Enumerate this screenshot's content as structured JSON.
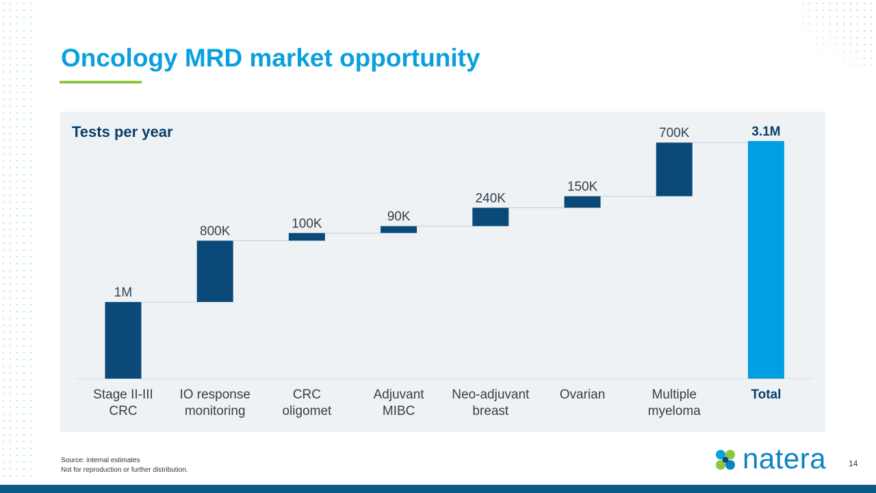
{
  "page": {
    "title": "Oncology MRD market opportunity",
    "subtitle": "Tests per year",
    "source": "Source: internal estimates",
    "disclaimer": "Not  for reproduction or further distribution.",
    "page_number": "14",
    "logo_text": "natera"
  },
  "colors": {
    "title": "#0aa0de",
    "accent_line": "#8dc63f",
    "bar_dark": "#0b4a78",
    "bar_total": "#009fe3",
    "label": "#333f48",
    "panel": "#eef2f5"
  },
  "chart_data": {
    "type": "waterfall",
    "categories": [
      "Stage II-III\nCRC",
      "IO response\nmonitoring",
      "CRC\noligomet",
      "Adjuvant\nMIBC",
      "Neo-adjuvant\nbreast",
      "Ovarian",
      "Multiple\nmyeloma",
      "Total"
    ],
    "value_labels": [
      "1M",
      "800K",
      "100K",
      "90K",
      "240K",
      "150K",
      "700K",
      "3.1M"
    ],
    "values": [
      1000000,
      800000,
      100000,
      90000,
      240000,
      150000,
      700000,
      3100000
    ],
    "total_index": 7,
    "ylim": [
      0,
      3100000
    ],
    "grid": false
  }
}
